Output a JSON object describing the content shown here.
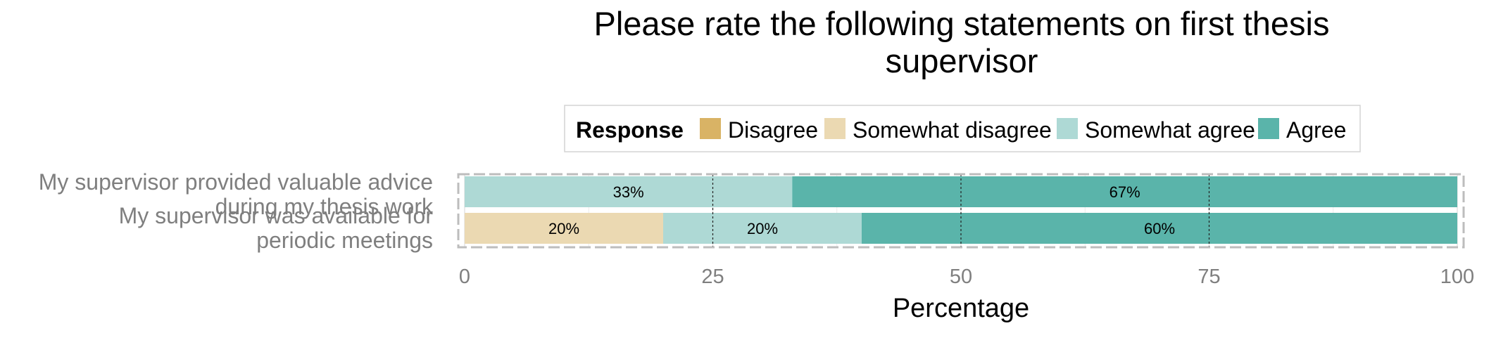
{
  "chart_data": {
    "type": "bar",
    "orientation": "horizontal",
    "stacked": true,
    "title": [
      "Please rate the following statements on first thesis",
      "supervisor"
    ],
    "xlabel": "Percentage",
    "ylabel": "",
    "xlim": [
      0,
      100
    ],
    "xticks": [
      "0",
      "25",
      "50",
      "75",
      "100"
    ],
    "grid": true,
    "legend": {
      "title": "Response",
      "position": "top",
      "entries": [
        "Disagree",
        "Somewhat disagree",
        "Somewhat agree",
        "Agree"
      ]
    },
    "colors": {
      "Disagree": "#d9b365",
      "Somewhat disagree": "#ebd9b2",
      "Somewhat agree": "#aed9d5",
      "Agree": "#5ab4aa"
    },
    "categories": [
      [
        "My supervisor provided valuable advice",
        "during my thesis work"
      ],
      [
        "My supervisor was available for",
        "periodic meetings"
      ]
    ],
    "series": [
      {
        "name": "Disagree",
        "values": [
          0,
          0
        ]
      },
      {
        "name": "Somewhat disagree",
        "values": [
          0,
          20
        ]
      },
      {
        "name": "Somewhat agree",
        "values": [
          33,
          20
        ]
      },
      {
        "name": "Agree",
        "values": [
          67,
          60
        ]
      }
    ],
    "data_labels": [
      [
        "",
        "",
        "33%",
        "67%"
      ],
      [
        "",
        "20%",
        "20%",
        "60%"
      ]
    ]
  }
}
